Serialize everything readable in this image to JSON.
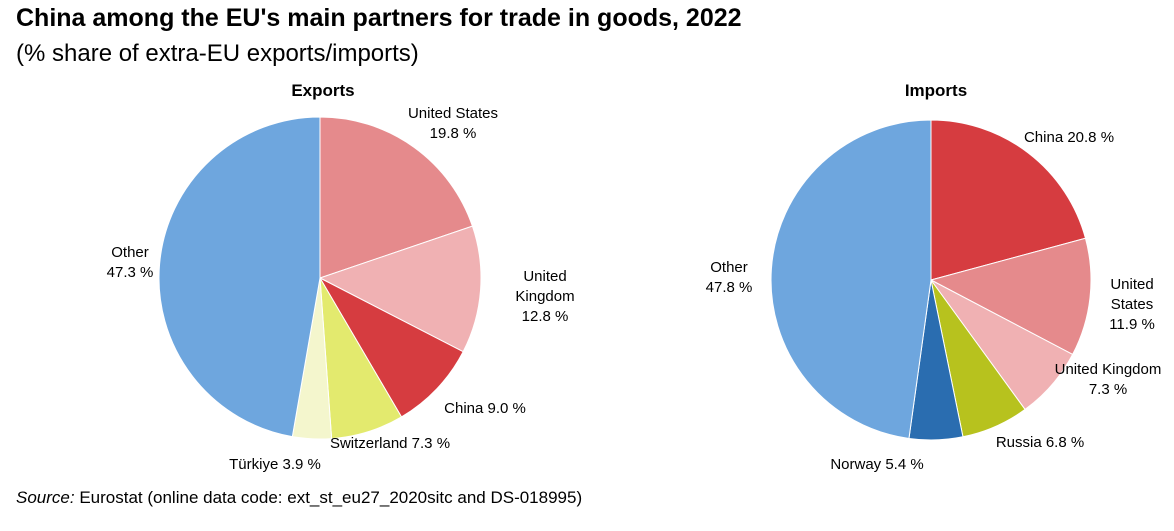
{
  "title": "China among the EU's main partners for trade in goods, 2022",
  "subtitle": "(% share of extra-EU exports/imports)",
  "source": {
    "label": "Source:",
    "text": "Eurostat (online data code: ext_st_eu27_2020sitc and DS-018995)"
  },
  "chart_data": [
    {
      "type": "pie",
      "title": "Exports",
      "unit": "%",
      "slices": [
        {
          "label": "United States",
          "value": 19.8,
          "color": "#e58a8c",
          "lines": [
            "United States",
            "19.8 %"
          ]
        },
        {
          "label": "United Kingdom",
          "value": 12.8,
          "color": "#f0b1b3",
          "lines": [
            "United",
            "Kingdom",
            "12.8 %"
          ]
        },
        {
          "label": "China",
          "value": 9.0,
          "color": "#d63c40",
          "lines": [
            "China 9.0 %"
          ]
        },
        {
          "label": "Switzerland",
          "value": 7.3,
          "color": "#e3ea6e",
          "lines": [
            "Switzerland 7.3 %"
          ]
        },
        {
          "label": "Türkiye",
          "value": 3.9,
          "color": "#f4f6cd",
          "lines": [
            "Türkiye 3.9 %"
          ]
        },
        {
          "label": "Other",
          "value": 47.3,
          "color": "#6ea6de",
          "lines": [
            "Other",
            "47.3 %"
          ]
        }
      ]
    },
    {
      "type": "pie",
      "title": "Imports",
      "unit": "%",
      "slices": [
        {
          "label": "China",
          "value": 20.8,
          "color": "#d63c40",
          "lines": [
            "China 20.8 %"
          ]
        },
        {
          "label": "United States",
          "value": 11.9,
          "color": "#e58a8c",
          "lines": [
            "United",
            "States",
            "11.9 %"
          ]
        },
        {
          "label": "United Kingdom",
          "value": 7.3,
          "color": "#f0b1b3",
          "lines": [
            "United Kingdom",
            "7.3 %"
          ]
        },
        {
          "label": "Russia",
          "value": 6.8,
          "color": "#b7c21e",
          "lines": [
            "Russia 6.8 %"
          ]
        },
        {
          "label": "Norway",
          "value": 5.4,
          "color": "#2a6db0",
          "lines": [
            "Norway 5.4 %"
          ]
        },
        {
          "label": "Other",
          "value": 47.8,
          "color": "#6ea6de",
          "lines": [
            "Other",
            "47.8 %"
          ]
        }
      ]
    }
  ]
}
